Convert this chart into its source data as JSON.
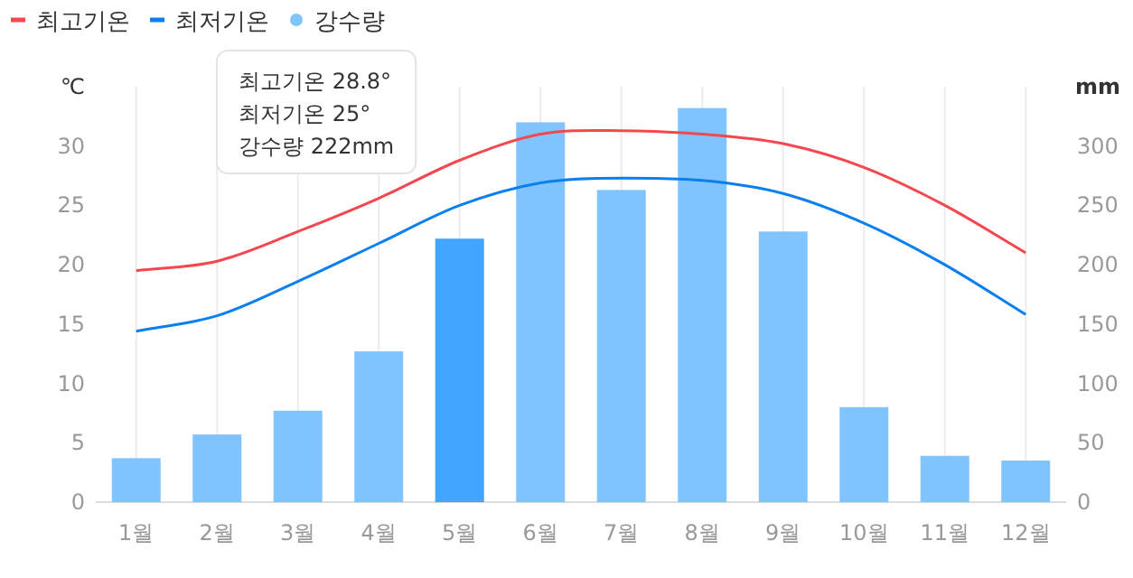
{
  "chart_data": {
    "type": "bar",
    "categories": [
      "1월",
      "2월",
      "3월",
      "4월",
      "5월",
      "6월",
      "7월",
      "8월",
      "9월",
      "10월",
      "11월",
      "12월"
    ],
    "series": [
      {
        "name": "최고기온",
        "type": "line",
        "color": "#f5474f",
        "values": [
          19.5,
          20.3,
          22.8,
          25.6,
          28.8,
          31.0,
          31.3,
          31.0,
          30.2,
          28.2,
          25.0,
          21.0
        ]
      },
      {
        "name": "최저기온",
        "type": "line",
        "color": "#0a7ff0",
        "values": [
          14.4,
          15.7,
          18.6,
          21.8,
          25,
          26.9,
          27.3,
          27.1,
          26.0,
          23.5,
          20.0,
          15.8
        ]
      },
      {
        "name": "강수량",
        "axis": "y2",
        "color": "#80c4ff",
        "colors": [
          "#80c4ff",
          "#80c4ff",
          "#80c4ff",
          "#80c4ff",
          "#42a5ff",
          "#80c4ff",
          "#80c4ff",
          "#80c4ff",
          "#80c4ff",
          "#80c4ff",
          "#80c4ff",
          "#80c4ff"
        ],
        "values": [
          37,
          57,
          77,
          127,
          222,
          320,
          263,
          332,
          228,
          80,
          39,
          35
        ]
      }
    ],
    "ylabel": "℃",
    "y2label": "mm",
    "ylim": [
      0,
      35
    ],
    "yticks": [
      0,
      5,
      10,
      15,
      20,
      25,
      30
    ],
    "y2lim": [
      0,
      350
    ],
    "y2ticks": [
      0,
      50,
      100,
      150,
      200,
      250,
      300
    ],
    "grid": "x",
    "legend": "top left",
    "annotations": [
      "최고기온 28.8°",
      "최저기온 25°",
      "강수량 222mm"
    ]
  }
}
